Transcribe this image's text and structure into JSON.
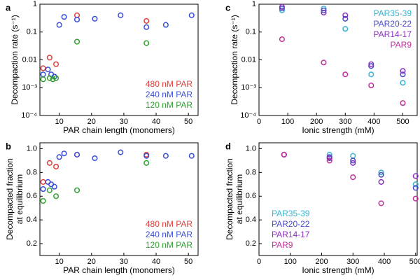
{
  "chart_data": [
    {
      "type": "scatter",
      "label": "a",
      "xlabel": "PAR chain length (monomers)",
      "ylabel": [
        "Decompaction rate (s⁻¹)"
      ],
      "log_y": true,
      "xlim": [
        4,
        53
      ],
      "xticks": [
        10,
        20,
        30,
        40,
        50
      ],
      "ylim": [
        0.0001,
        1
      ],
      "yticks": [
        {
          "value": 0.0001,
          "label": "10⁻⁴"
        },
        {
          "value": 0.001,
          "label": "10⁻³"
        },
        0.01,
        0.1,
        1
      ],
      "legend": "lower right",
      "series": [
        {
          "name": "480 nM PAR",
          "color": "#e0403a",
          "x": [
            5,
            7,
            9,
            15.5,
            37
          ],
          "values": [
            0.005,
            0.012,
            0.007,
            0.4,
            0.25
          ]
        },
        {
          "name": "240 nM PAR",
          "color": "#3a4fd8",
          "x": [
            5,
            6.5,
            7.5,
            8.5,
            10,
            11.5,
            15.5,
            21,
            29,
            37,
            43,
            51
          ],
          "values": [
            0.003,
            0.0045,
            0.003,
            0.0025,
            0.18,
            0.35,
            0.28,
            0.3,
            0.4,
            0.15,
            0.18,
            0.4
          ]
        },
        {
          "name": "120 nM PAR",
          "color": "#30a030",
          "x": [
            5,
            7,
            8,
            9,
            15.5,
            37
          ],
          "values": [
            0.002,
            0.0022,
            0.002,
            0.0022,
            0.045,
            0.04
          ]
        }
      ]
    },
    {
      "type": "scatter",
      "label": "b",
      "xlabel": "PAR chain length (monomers)",
      "ylabel": [
        "Decompacted fraction",
        "at equilibrium"
      ],
      "log_y": false,
      "xlim": [
        4,
        53
      ],
      "xticks": [
        10,
        20,
        30,
        40,
        50
      ],
      "ylim": [
        0.1,
        1.05
      ],
      "yticks": [
        0.2,
        0.4,
        0.6,
        0.8,
        {
          "value": 1,
          "label": "1.0"
        }
      ],
      "legend": "lower right",
      "series": [
        {
          "name": "480 nM PAR",
          "color": "#e0403a",
          "x": [
            5,
            7,
            9,
            15.5,
            37
          ],
          "values": [
            0.72,
            0.88,
            0.85,
            0.95,
            0.95
          ]
        },
        {
          "name": "240 nM PAR",
          "color": "#3a4fd8",
          "x": [
            5,
            6.5,
            7.5,
            8.5,
            10,
            11.5,
            15.5,
            21,
            29,
            37,
            43,
            51
          ],
          "values": [
            0.66,
            0.72,
            0.7,
            0.68,
            0.93,
            0.96,
            0.95,
            0.92,
            0.97,
            0.94,
            0.94,
            0.94
          ]
        },
        {
          "name": "120 nM PAR",
          "color": "#30a030",
          "x": [
            5,
            7,
            9,
            15.5,
            37
          ],
          "values": [
            0.56,
            0.65,
            0.6,
            0.65,
            0.88
          ]
        }
      ]
    },
    {
      "type": "scatter",
      "label": "c",
      "xlabel": "Ionic strength (mM)",
      "ylabel": [
        "Decompaction rate (s⁻¹)"
      ],
      "log_y": true,
      "xlim": [
        0,
        550
      ],
      "xticks": [
        0,
        100,
        200,
        300,
        400,
        500
      ],
      "ylim": [
        0.0001,
        1
      ],
      "yticks": [
        {
          "value": 0.0001,
          "label": "10⁻⁴"
        },
        {
          "value": 0.001,
          "label": "10⁻³"
        },
        0.01,
        0.1,
        1
      ],
      "legend": "upper right",
      "series": [
        {
          "name": "PAR35-39",
          "color": "#38b4d0",
          "x": [
            80,
            225,
            300,
            390,
            500
          ],
          "values": [
            0.6,
            0.7,
            0.13,
            0.003,
            0.0015
          ]
        },
        {
          "name": "PAR20-22",
          "color": "#4a4ac8",
          "x": [
            80,
            225,
            300,
            390,
            500
          ],
          "values": [
            0.7,
            0.6,
            0.3,
            0.006,
            0.003
          ]
        },
        {
          "name": "PAR14-17",
          "color": "#8a30c0",
          "x": [
            80,
            225,
            300,
            390,
            500
          ],
          "values": [
            0.8,
            0.5,
            0.4,
            0.007,
            0.004
          ]
        },
        {
          "name": "PAR9",
          "color": "#c0309c",
          "x": [
            80,
            225,
            300,
            390,
            500
          ],
          "values": [
            0.055,
            0.008,
            0.003,
            0.0012,
            0.00028
          ]
        }
      ]
    },
    {
      "type": "scatter",
      "label": "d",
      "xlabel": "Ionic strength (mM)",
      "ylabel": [
        "Decompacted fraction",
        "at equilibrium"
      ],
      "log_y": false,
      "xlim": [
        0,
        505
      ],
      "xticks": [
        0,
        100,
        200,
        300,
        400,
        500
      ],
      "ylim": [
        0.1,
        1.05
      ],
      "yticks": [
        0.2,
        0.4,
        0.6,
        0.8,
        {
          "value": 1,
          "label": "1.0"
        }
      ],
      "legend": "lower left",
      "series": [
        {
          "name": "PAR35-39",
          "color": "#38b4d0",
          "x": [
            80,
            225,
            300,
            390,
            500
          ],
          "values": [
            0.95,
            0.95,
            0.94,
            0.8,
            0.7
          ]
        },
        {
          "name": "PAR20-22",
          "color": "#4a4ac8",
          "x": [
            80,
            225,
            300,
            390,
            500
          ],
          "values": [
            0.95,
            0.93,
            0.9,
            0.78,
            0.67
          ]
        },
        {
          "name": "PAR14-17",
          "color": "#8a30c0",
          "x": [
            80,
            225,
            300,
            390,
            500
          ],
          "values": [
            0.95,
            0.92,
            0.88,
            0.72,
            0.77
          ]
        },
        {
          "name": "PAR9",
          "color": "#c0309c",
          "x": [
            80,
            225,
            300,
            390,
            500
          ],
          "values": [
            0.95,
            0.9,
            0.76,
            0.54,
            0.58
          ]
        }
      ]
    }
  ]
}
